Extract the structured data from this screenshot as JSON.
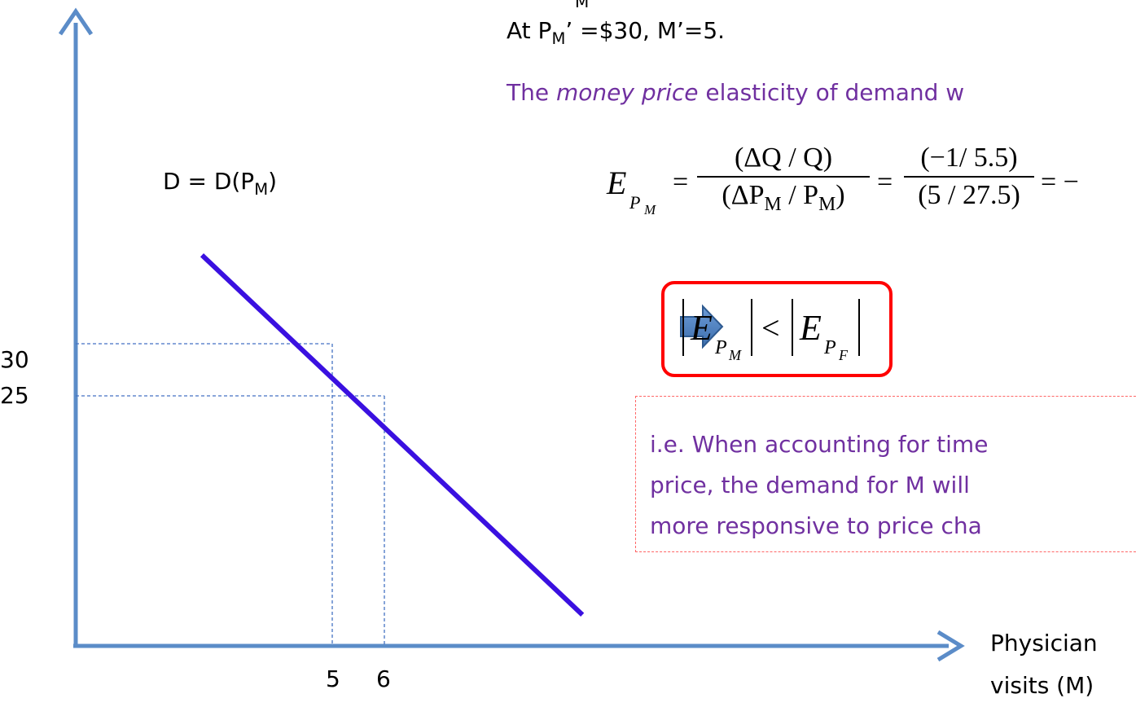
{
  "chart_data": {
    "type": "line",
    "series": [
      {
        "name": "D = D(P_M)",
        "points": [
          [
            2.5,
            38.5
          ],
          [
            9.8,
            4.0
          ]
        ]
      }
    ],
    "reference_points": [
      [
        5,
        30
      ],
      [
        6,
        25
      ]
    ],
    "x_ticks": [
      "5",
      "6"
    ],
    "y_ticks": [
      "30",
      "25"
    ],
    "xlabel_line1": "Physician",
    "xlabel_line2": "visits (M)",
    "ylabel": "",
    "curve_color": "#3a10e0",
    "axis_color": "#5b8cc8",
    "guide_color": "#4472c4"
  },
  "curve_label": {
    "text": "D = D(P",
    "sub": "M",
    "close": ")"
  },
  "text_top": {
    "partial_sub": "M",
    "line_prefix": "At P",
    "line_sub": "M",
    "line_rest": "’ =$30, M’=5."
  },
  "elasticity_sentence": {
    "prefix": "The ",
    "italic": "money price",
    "rest": " elasticity of demand w"
  },
  "formula": {
    "lhs_E": "E",
    "lhs_sub_P": "P",
    "lhs_sub_M": "M",
    "eq": "=",
    "frac1_num": "(ΔQ / Q)",
    "frac1_den": "(ΔP",
    "frac1_den_sub": "M",
    "frac1_den_mid": " / P",
    "frac1_den_sub2": "M",
    "frac1_den_close": ")",
    "frac2_num": "(−1/ 5.5)",
    "frac2_den": "(5 / 27.5)",
    "tail": "= −"
  },
  "inequality": {
    "E1": "E",
    "E1_sub_P": "P",
    "E1_sub_M": "M",
    "lt": "<",
    "E2": "E",
    "E2_sub_P": "P",
    "E2_sub_F": "F"
  },
  "note": {
    "line1": "i.e. When accounting for time",
    "line2": "price, the demand for M will",
    "line3": "more responsive to price cha"
  },
  "colors": {
    "highlight_border": "#ff0000",
    "note_border": "#ff6666",
    "note_text": "#7030a0",
    "arrow_fill": "#4f81bd"
  }
}
